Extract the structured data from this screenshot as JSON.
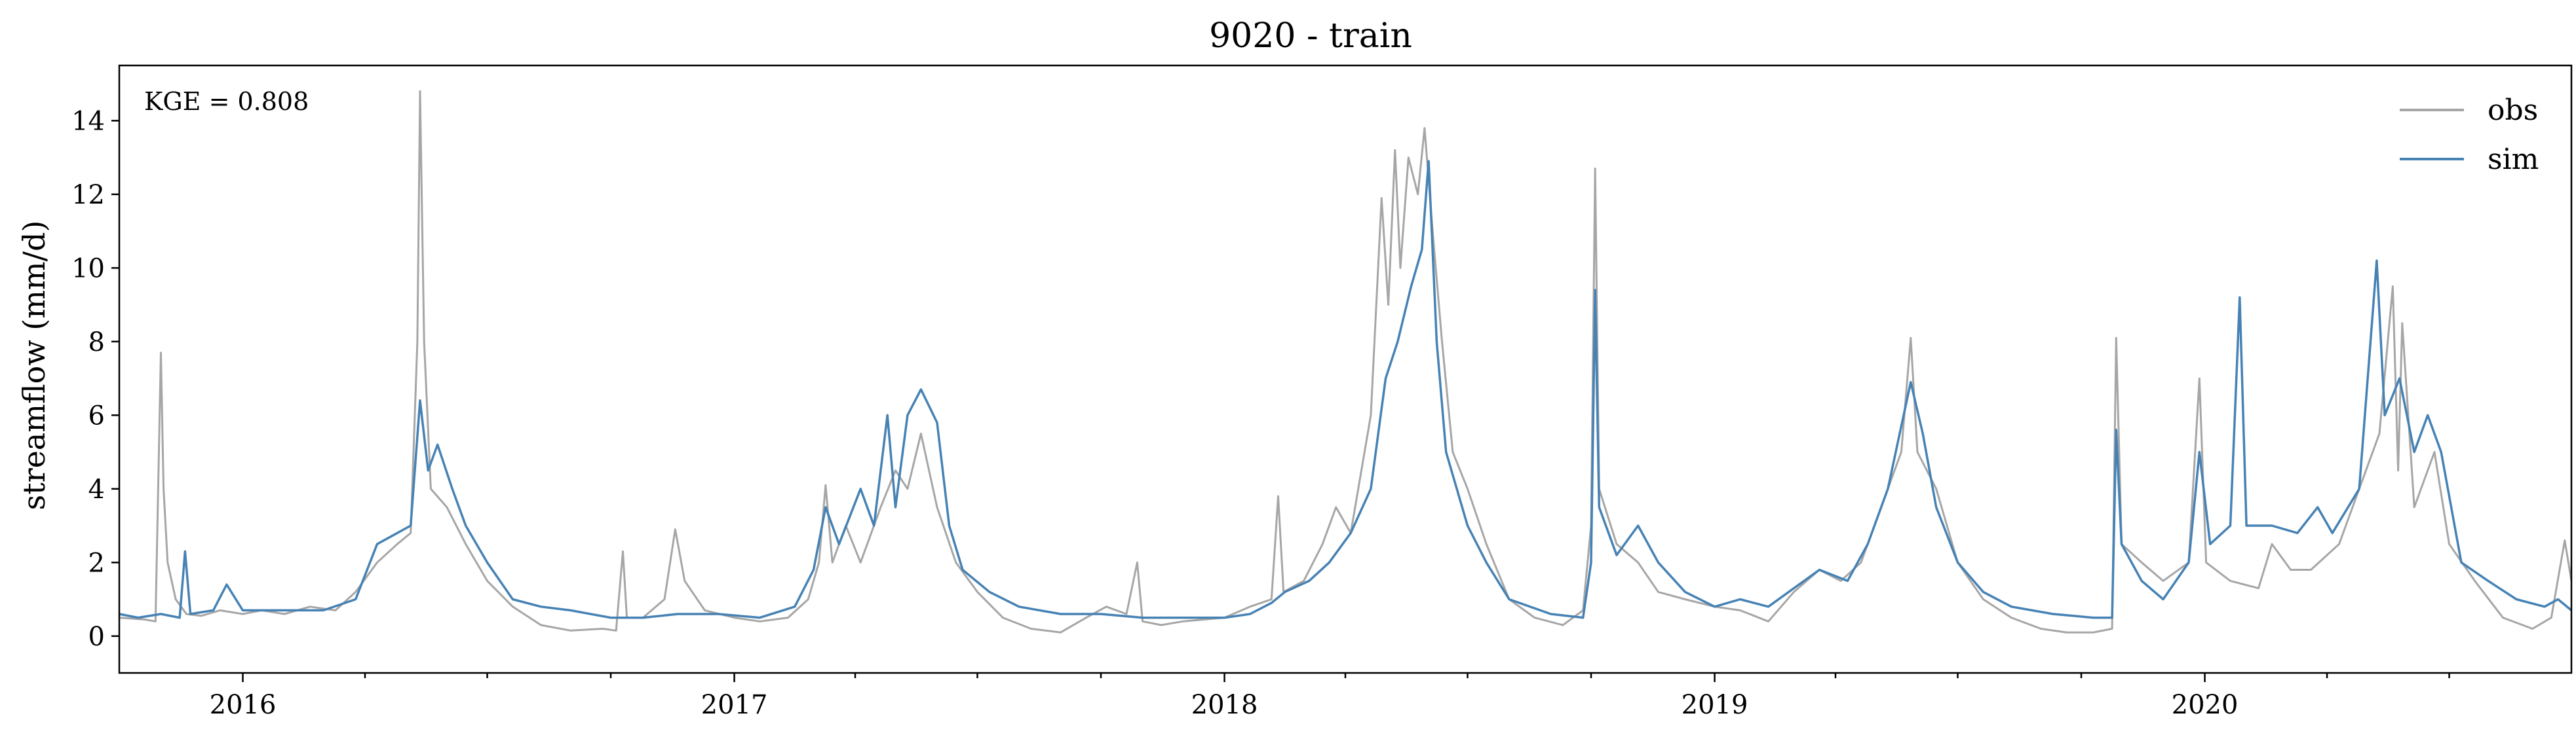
{
  "chart_data": {
    "type": "line",
    "title": "9020 - train",
    "xlabel": "",
    "ylabel": "streamflow (mm/d)",
    "annotation": "KGE = 0.808",
    "xlim": [
      "2015-10-01",
      "2020-09-30"
    ],
    "ylim": [
      -1.0,
      15.5
    ],
    "yticks": [
      0,
      2,
      4,
      6,
      8,
      10,
      12,
      14
    ],
    "xticks_major": [
      "2016-01-01",
      "2017-01-01",
      "2018-01-01",
      "2019-01-01",
      "2020-01-01"
    ],
    "xtick_labels": [
      "2016",
      "2017",
      "2018",
      "2019",
      "2020"
    ],
    "xticks_minor": [
      "2016-04-01",
      "2016-07-01",
      "2016-10-01",
      "2017-04-01",
      "2017-07-01",
      "2017-10-01",
      "2018-04-01",
      "2018-07-01",
      "2018-10-01",
      "2019-04-01",
      "2019-07-01",
      "2019-10-01",
      "2020-04-01",
      "2020-07-01"
    ],
    "legend_position": "upper-right",
    "grid": false,
    "series": [
      {
        "name": "obs",
        "color": "#a6a6a6",
        "points": [
          [
            "2015-10-01",
            0.5
          ],
          [
            "2015-10-20",
            0.45
          ],
          [
            "2015-10-28",
            0.4
          ],
          [
            "2015-11-01",
            7.7
          ],
          [
            "2015-11-03",
            4.0
          ],
          [
            "2015-11-06",
            2.0
          ],
          [
            "2015-11-12",
            1.0
          ],
          [
            "2015-11-20",
            0.6
          ],
          [
            "2015-12-01",
            0.55
          ],
          [
            "2015-12-15",
            0.7
          ],
          [
            "2016-01-01",
            0.6
          ],
          [
            "2016-01-15",
            0.7
          ],
          [
            "2016-02-01",
            0.6
          ],
          [
            "2016-02-20",
            0.8
          ],
          [
            "2016-03-10",
            0.7
          ],
          [
            "2016-03-25",
            1.2
          ],
          [
            "2016-04-10",
            2.0
          ],
          [
            "2016-04-25",
            2.5
          ],
          [
            "2016-05-05",
            2.8
          ],
          [
            "2016-05-10",
            8.0
          ],
          [
            "2016-05-12",
            14.8
          ],
          [
            "2016-05-15",
            8.0
          ],
          [
            "2016-05-20",
            4.0
          ],
          [
            "2016-06-01",
            3.5
          ],
          [
            "2016-06-15",
            2.5
          ],
          [
            "2016-07-01",
            1.5
          ],
          [
            "2016-07-20",
            0.8
          ],
          [
            "2016-08-10",
            0.3
          ],
          [
            "2016-09-01",
            0.15
          ],
          [
            "2016-09-25",
            0.2
          ],
          [
            "2016-10-05",
            0.15
          ],
          [
            "2016-10-10",
            2.3
          ],
          [
            "2016-10-13",
            0.5
          ],
          [
            "2016-10-25",
            0.5
          ],
          [
            "2016-11-10",
            1.0
          ],
          [
            "2016-11-18",
            2.9
          ],
          [
            "2016-11-25",
            1.5
          ],
          [
            "2016-12-10",
            0.7
          ],
          [
            "2017-01-01",
            0.5
          ],
          [
            "2017-01-20",
            0.4
          ],
          [
            "2017-02-10",
            0.5
          ],
          [
            "2017-02-25",
            1.0
          ],
          [
            "2017-03-05",
            2.0
          ],
          [
            "2017-03-10",
            4.1
          ],
          [
            "2017-03-15",
            2.0
          ],
          [
            "2017-03-25",
            3.0
          ],
          [
            "2017-04-05",
            2.0
          ],
          [
            "2017-04-20",
            3.5
          ],
          [
            "2017-05-01",
            4.5
          ],
          [
            "2017-05-10",
            4.0
          ],
          [
            "2017-05-20",
            5.5
          ],
          [
            "2017-06-01",
            3.5
          ],
          [
            "2017-06-15",
            2.0
          ],
          [
            "2017-07-01",
            1.2
          ],
          [
            "2017-07-20",
            0.5
          ],
          [
            "2017-08-10",
            0.2
          ],
          [
            "2017-09-01",
            0.1
          ],
          [
            "2017-09-20",
            0.5
          ],
          [
            "2017-10-05",
            0.8
          ],
          [
            "2017-10-20",
            0.6
          ],
          [
            "2017-10-28",
            2.0
          ],
          [
            "2017-11-01",
            0.4
          ],
          [
            "2017-11-15",
            0.3
          ],
          [
            "2017-12-01",
            0.4
          ],
          [
            "2018-01-01",
            0.5
          ],
          [
            "2018-01-20",
            0.8
          ],
          [
            "2018-02-05",
            1.0
          ],
          [
            "2018-02-10",
            3.8
          ],
          [
            "2018-02-14",
            1.2
          ],
          [
            "2018-03-01",
            1.5
          ],
          [
            "2018-03-15",
            2.5
          ],
          [
            "2018-03-25",
            3.5
          ],
          [
            "2018-04-05",
            2.8
          ],
          [
            "2018-04-20",
            6.0
          ],
          [
            "2018-04-28",
            11.9
          ],
          [
            "2018-05-03",
            9.0
          ],
          [
            "2018-05-08",
            13.2
          ],
          [
            "2018-05-12",
            10.0
          ],
          [
            "2018-05-18",
            13.0
          ],
          [
            "2018-05-25",
            12.0
          ],
          [
            "2018-05-30",
            13.8
          ],
          [
            "2018-06-05",
            11.0
          ],
          [
            "2018-06-12",
            8.0
          ],
          [
            "2018-06-20",
            5.0
          ],
          [
            "2018-07-01",
            4.0
          ],
          [
            "2018-07-15",
            2.5
          ],
          [
            "2018-08-01",
            1.0
          ],
          [
            "2018-08-20",
            0.5
          ],
          [
            "2018-09-10",
            0.3
          ],
          [
            "2018-09-25",
            0.7
          ],
          [
            "2018-10-01",
            3.0
          ],
          [
            "2018-10-04",
            12.7
          ],
          [
            "2018-10-07",
            4.0
          ],
          [
            "2018-10-20",
            2.5
          ],
          [
            "2018-11-05",
            2.0
          ],
          [
            "2018-11-20",
            1.2
          ],
          [
            "2018-12-10",
            1.0
          ],
          [
            "2019-01-01",
            0.8
          ],
          [
            "2019-01-20",
            0.7
          ],
          [
            "2019-02-10",
            0.4
          ],
          [
            "2019-03-01",
            1.2
          ],
          [
            "2019-03-20",
            1.8
          ],
          [
            "2019-04-05",
            1.5
          ],
          [
            "2019-04-20",
            2.0
          ],
          [
            "2019-05-05",
            3.5
          ],
          [
            "2019-05-20",
            5.0
          ],
          [
            "2019-05-27",
            8.1
          ],
          [
            "2019-06-01",
            5.0
          ],
          [
            "2019-06-15",
            4.0
          ],
          [
            "2019-07-01",
            2.0
          ],
          [
            "2019-07-20",
            1.0
          ],
          [
            "2019-08-10",
            0.5
          ],
          [
            "2019-09-01",
            0.2
          ],
          [
            "2019-09-20",
            0.1
          ],
          [
            "2019-10-10",
            0.1
          ],
          [
            "2019-10-24",
            0.2
          ],
          [
            "2019-10-27",
            8.1
          ],
          [
            "2019-10-31",
            2.5
          ],
          [
            "2019-11-15",
            2.0
          ],
          [
            "2019-12-01",
            1.5
          ],
          [
            "2019-12-20",
            2.0
          ],
          [
            "2019-12-28",
            7.0
          ],
          [
            "2020-01-02",
            2.0
          ],
          [
            "2020-01-20",
            1.5
          ],
          [
            "2020-02-10",
            1.3
          ],
          [
            "2020-02-20",
            2.5
          ],
          [
            "2020-03-05",
            1.8
          ],
          [
            "2020-03-20",
            1.8
          ],
          [
            "2020-04-10",
            2.5
          ],
          [
            "2020-04-25",
            4.0
          ],
          [
            "2020-05-10",
            5.5
          ],
          [
            "2020-05-20",
            9.5
          ],
          [
            "2020-05-24",
            4.5
          ],
          [
            "2020-05-27",
            8.5
          ],
          [
            "2020-06-05",
            3.5
          ],
          [
            "2020-06-20",
            5.0
          ],
          [
            "2020-07-01",
            2.5
          ],
          [
            "2020-07-20",
            1.5
          ],
          [
            "2020-08-10",
            0.5
          ],
          [
            "2020-09-01",
            0.2
          ],
          [
            "2020-09-15",
            0.5
          ],
          [
            "2020-09-25",
            2.6
          ],
          [
            "2020-09-30",
            1.5
          ]
        ]
      },
      {
        "name": "sim",
        "color": "#4682b4",
        "points": [
          [
            "2015-10-01",
            0.6
          ],
          [
            "2015-10-15",
            0.5
          ],
          [
            "2015-11-01",
            0.6
          ],
          [
            "2015-11-15",
            0.5
          ],
          [
            "2015-11-19",
            2.3
          ],
          [
            "2015-11-23",
            0.6
          ],
          [
            "2015-12-10",
            0.7
          ],
          [
            "2015-12-20",
            1.4
          ],
          [
            "2016-01-01",
            0.7
          ],
          [
            "2016-02-01",
            0.7
          ],
          [
            "2016-03-01",
            0.7
          ],
          [
            "2016-03-25",
            1.0
          ],
          [
            "2016-04-10",
            2.5
          ],
          [
            "2016-04-25",
            2.8
          ],
          [
            "2016-05-05",
            3.0
          ],
          [
            "2016-05-12",
            6.4
          ],
          [
            "2016-05-18",
            4.5
          ],
          [
            "2016-05-25",
            5.2
          ],
          [
            "2016-06-05",
            4.0
          ],
          [
            "2016-06-15",
            3.0
          ],
          [
            "2016-07-01",
            2.0
          ],
          [
            "2016-07-20",
            1.0
          ],
          [
            "2016-08-10",
            0.8
          ],
          [
            "2016-09-01",
            0.7
          ],
          [
            "2016-10-01",
            0.5
          ],
          [
            "2016-10-25",
            0.5
          ],
          [
            "2016-11-20",
            0.6
          ],
          [
            "2016-12-20",
            0.6
          ],
          [
            "2017-01-20",
            0.5
          ],
          [
            "2017-02-15",
            0.8
          ],
          [
            "2017-03-01",
            1.8
          ],
          [
            "2017-03-10",
            3.5
          ],
          [
            "2017-03-20",
            2.5
          ],
          [
            "2017-04-05",
            4.0
          ],
          [
            "2017-04-15",
            3.0
          ],
          [
            "2017-04-25",
            6.0
          ],
          [
            "2017-05-01",
            3.5
          ],
          [
            "2017-05-10",
            6.0
          ],
          [
            "2017-05-20",
            6.7
          ],
          [
            "2017-06-01",
            5.8
          ],
          [
            "2017-06-10",
            3.0
          ],
          [
            "2017-06-20",
            1.8
          ],
          [
            "2017-07-10",
            1.2
          ],
          [
            "2017-08-01",
            0.8
          ],
          [
            "2017-09-01",
            0.6
          ],
          [
            "2017-10-01",
            0.6
          ],
          [
            "2017-11-01",
            0.5
          ],
          [
            "2017-12-01",
            0.5
          ],
          [
            "2018-01-01",
            0.5
          ],
          [
            "2018-01-20",
            0.6
          ],
          [
            "2018-02-05",
            0.9
          ],
          [
            "2018-02-15",
            1.2
          ],
          [
            "2018-03-05",
            1.5
          ],
          [
            "2018-03-20",
            2.0
          ],
          [
            "2018-04-05",
            2.8
          ],
          [
            "2018-04-20",
            4.0
          ],
          [
            "2018-05-01",
            7.0
          ],
          [
            "2018-05-10",
            8.0
          ],
          [
            "2018-05-20",
            9.5
          ],
          [
            "2018-05-28",
            10.5
          ],
          [
            "2018-06-02",
            12.9
          ],
          [
            "2018-06-08",
            8.0
          ],
          [
            "2018-06-15",
            5.0
          ],
          [
            "2018-07-01",
            3.0
          ],
          [
            "2018-07-15",
            2.0
          ],
          [
            "2018-08-01",
            1.0
          ],
          [
            "2018-09-01",
            0.6
          ],
          [
            "2018-09-25",
            0.5
          ],
          [
            "2018-10-01",
            2.0
          ],
          [
            "2018-10-04",
            9.4
          ],
          [
            "2018-10-07",
            3.5
          ],
          [
            "2018-10-20",
            2.2
          ],
          [
            "2018-11-05",
            3.0
          ],
          [
            "2018-11-20",
            2.0
          ],
          [
            "2018-12-10",
            1.2
          ],
          [
            "2019-01-01",
            0.8
          ],
          [
            "2019-01-20",
            1.0
          ],
          [
            "2019-02-10",
            0.8
          ],
          [
            "2019-03-01",
            1.3
          ],
          [
            "2019-03-20",
            1.8
          ],
          [
            "2019-04-10",
            1.5
          ],
          [
            "2019-04-25",
            2.5
          ],
          [
            "2019-05-10",
            4.0
          ],
          [
            "2019-05-27",
            6.9
          ],
          [
            "2019-06-05",
            5.5
          ],
          [
            "2019-06-15",
            3.5
          ],
          [
            "2019-07-01",
            2.0
          ],
          [
            "2019-07-20",
            1.2
          ],
          [
            "2019-08-10",
            0.8
          ],
          [
            "2019-09-10",
            0.6
          ],
          [
            "2019-10-10",
            0.5
          ],
          [
            "2019-10-24",
            0.5
          ],
          [
            "2019-10-27",
            5.6
          ],
          [
            "2019-10-31",
            2.5
          ],
          [
            "2019-11-15",
            1.5
          ],
          [
            "2019-12-01",
            1.0
          ],
          [
            "2019-12-20",
            2.0
          ],
          [
            "2019-12-28",
            5.0
          ],
          [
            "2020-01-05",
            2.5
          ],
          [
            "2020-01-20",
            3.0
          ],
          [
            "2020-01-27",
            9.2
          ],
          [
            "2020-02-01",
            3.0
          ],
          [
            "2020-02-20",
            3.0
          ],
          [
            "2020-03-10",
            2.8
          ],
          [
            "2020-03-25",
            3.5
          ],
          [
            "2020-04-05",
            2.8
          ],
          [
            "2020-04-25",
            4.0
          ],
          [
            "2020-05-08",
            10.2
          ],
          [
            "2020-05-14",
            6.0
          ],
          [
            "2020-05-25",
            7.0
          ],
          [
            "2020-06-05",
            5.0
          ],
          [
            "2020-06-15",
            6.0
          ],
          [
            "2020-06-25",
            5.0
          ],
          [
            "2020-07-10",
            2.0
          ],
          [
            "2020-07-30",
            1.5
          ],
          [
            "2020-08-20",
            1.0
          ],
          [
            "2020-09-10",
            0.8
          ],
          [
            "2020-09-20",
            1.0
          ],
          [
            "2020-09-30",
            0.7
          ]
        ]
      }
    ]
  }
}
